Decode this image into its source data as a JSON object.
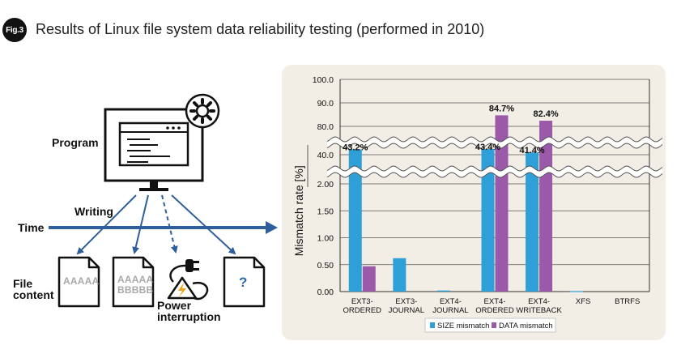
{
  "header": {
    "badge": "Fig.3",
    "title": "Results of Linux file system data reliability testing (performed in 2010)"
  },
  "diagram": {
    "program_label": "Program",
    "writing_label": "Writing",
    "time_label": "Time",
    "file_content_label": [
      "File",
      "content"
    ],
    "power_label": [
      "Power",
      "interruption"
    ],
    "doc1_text": [
      "AAAAA"
    ],
    "doc2_text": [
      "AAAAA",
      "BBBBB"
    ],
    "doc3_text": "?",
    "icons": [
      "computer-monitor-icon",
      "gear-icon",
      "program-window-icon",
      "plug-icon",
      "lightning-icon",
      "document-icon"
    ],
    "colors": {
      "arrow": "#2e5f9c",
      "badge": "#111111",
      "lightning": "#f3a21c"
    }
  },
  "chart_data": {
    "type": "bar",
    "categories": [
      "EXT3-\nORDERED",
      "EXT3-\nJOURNAL",
      "EXT4-\nJOURNAL",
      "EXT4-\nORDERED",
      "EXT4-\nWRITEBACK",
      "XFS",
      "BTRFS"
    ],
    "series": [
      {
        "name": "SIZE mismatch",
        "color": "#2f9fd8",
        "values": [
          43.2,
          0.62,
          0.02,
          43.4,
          41.4,
          0.01,
          0
        ]
      },
      {
        "name": "DATA mismatch",
        "color": "#9b5aa9",
        "values": [
          0.47,
          0,
          0,
          84.7,
          82.4,
          0,
          0
        ]
      }
    ],
    "data_labels": [
      {
        "series": 0,
        "category": 0,
        "text": "43.2%"
      },
      {
        "series": 0,
        "category": 3,
        "text": "43.4%"
      },
      {
        "series": 0,
        "category": 4,
        "text": "41.4%"
      },
      {
        "series": 1,
        "category": 3,
        "text": "84.7%"
      },
      {
        "series": 1,
        "category": 4,
        "text": "82.4%"
      }
    ],
    "ylabel": "Mismatch rate [%]",
    "y_axis": "broken: segment 0–2.00, break, segment 40.0, break, segment 80.0–100.0",
    "yticks_low": [
      "0.00",
      "0.50",
      "1.00",
      "1.50",
      "2.00"
    ],
    "ytick_mid": "40.0",
    "yticks_high": [
      "80.0",
      "90.0",
      "100.0"
    ],
    "legend_position": "bottom-center",
    "grid": true
  }
}
